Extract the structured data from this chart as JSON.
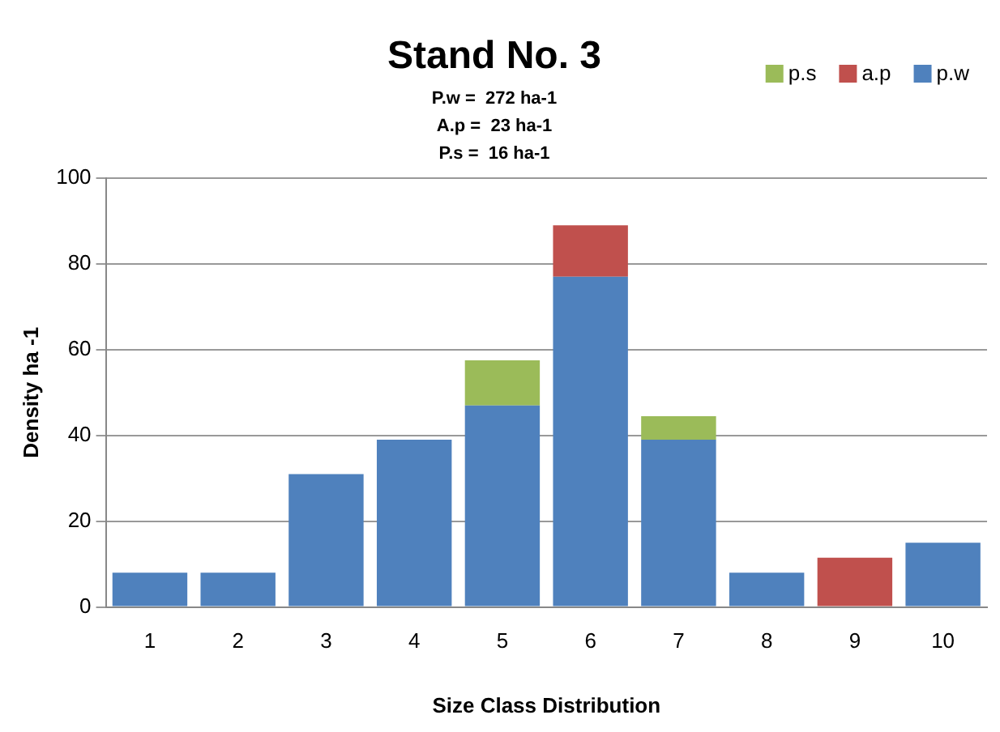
{
  "chart_data": {
    "type": "bar",
    "title": "Stand No. 3",
    "annotations": [
      "P.w =  272 ha-1",
      "A.p =  23 ha-1",
      "P.s =  16 ha-1"
    ],
    "xlabel": "Size Class Distribution",
    "ylabel": "Density ha -1",
    "categories": [
      "1",
      "2",
      "3",
      "4",
      "5",
      "6",
      "7",
      "8",
      "9",
      "10"
    ],
    "stacked": true,
    "series": [
      {
        "name": "p.w",
        "color": "#4f81bd",
        "values": [
          8,
          8,
          31,
          39,
          47,
          77,
          39,
          8,
          null,
          15
        ]
      },
      {
        "name": "a.p",
        "color": "#c0504d",
        "values": [
          null,
          null,
          null,
          null,
          null,
          12,
          null,
          null,
          11.5,
          null
        ]
      },
      {
        "name": "p.s",
        "color": "#9bbb59",
        "values": [
          null,
          null,
          null,
          null,
          10.5,
          null,
          5.5,
          null,
          null,
          null
        ]
      }
    ],
    "ylim": [
      0,
      100
    ],
    "yticks": [
      0,
      20,
      40,
      60,
      80,
      100
    ],
    "grid": "y",
    "legend": "top right"
  }
}
